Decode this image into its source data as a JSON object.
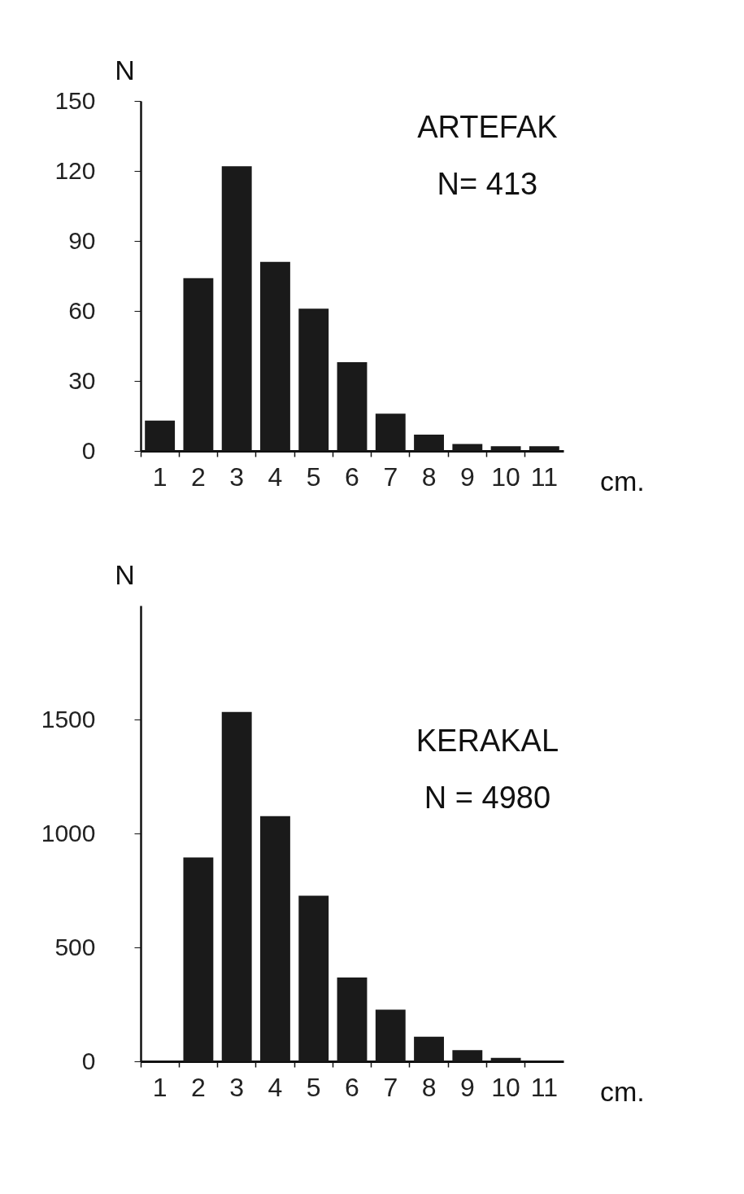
{
  "chart_data": [
    {
      "type": "bar",
      "xlabel": "cm.",
      "ylabel": "N",
      "annotations": [
        "ARTEFAK",
        "N= 413"
      ],
      "categories": [
        "1",
        "2",
        "3",
        "4",
        "5",
        "6",
        "7",
        "8",
        "9",
        "10",
        "11"
      ],
      "values": [
        13,
        74,
        122,
        81,
        61,
        38,
        16,
        7,
        3,
        2,
        2
      ],
      "color": "#1a1a1a",
      "ylim": [
        0,
        150
      ],
      "yticks": [
        0,
        30,
        60,
        90,
        120,
        150
      ],
      "grid": false
    },
    {
      "type": "bar",
      "xlabel": "cm.",
      "ylabel": "N",
      "annotations": [
        "KERAKAL",
        "N = 4980"
      ],
      "categories": [
        "1",
        "2",
        "3",
        "4",
        "5",
        "6",
        "7",
        "8",
        "9",
        "10",
        "11"
      ],
      "values": [
        0,
        895,
        1533,
        1076,
        727,
        368,
        227,
        108,
        49,
        15,
        0
      ],
      "color": "#1a1a1a",
      "ylim": [
        0,
        2000
      ],
      "yticks": [
        0,
        500,
        1000,
        1500
      ],
      "grid": false
    }
  ]
}
